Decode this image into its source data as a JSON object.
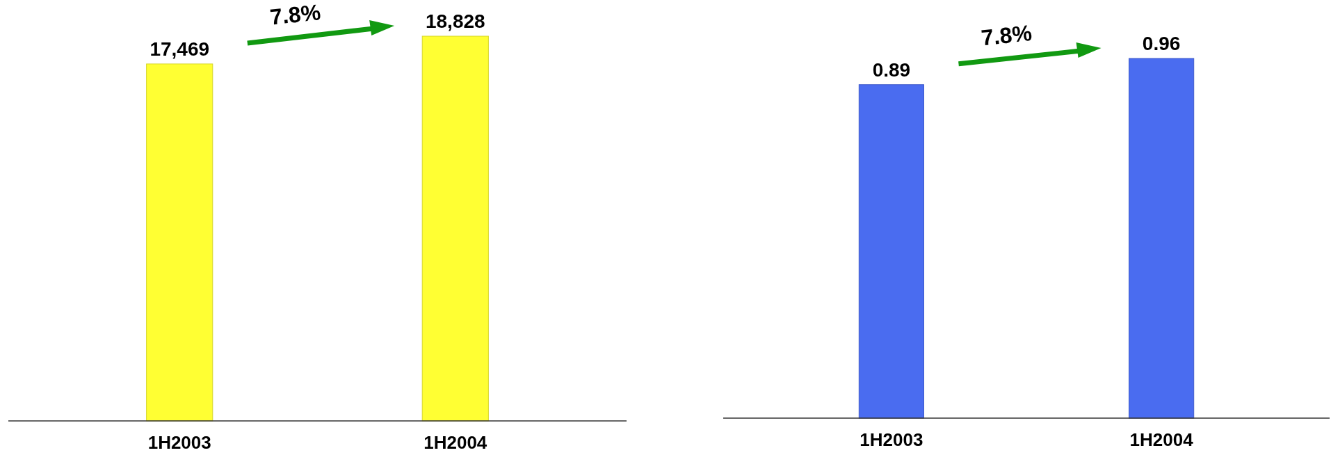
{
  "chart_data": [
    {
      "type": "bar",
      "categories": [
        "1H2003",
        "1H2004"
      ],
      "values": [
        17469,
        18828
      ],
      "value_labels": [
        "17,469",
        "18,828"
      ],
      "color": "#ffff33",
      "annotations": [
        "7.8%"
      ]
    },
    {
      "type": "bar",
      "categories": [
        "1H2003",
        "1H2004"
      ],
      "values": [
        0.89,
        0.96
      ],
      "data_labels": true,
      "color": "#4a6cf0",
      "annotations": [
        "7.8%"
      ]
    }
  ]
}
